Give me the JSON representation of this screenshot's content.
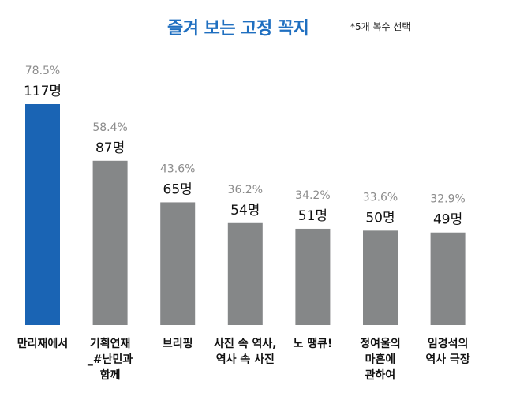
{
  "title": "즐겨 보는 고정 꼭지",
  "note": "*5개 복수 선택",
  "colors": {
    "highlight": "#1a64b4",
    "bar": "#858788",
    "title": "#1f6fc0"
  },
  "chart_data": {
    "type": "bar",
    "title": "즐겨 보는 고정 꼭지",
    "subtitle": "*5개 복수 선택",
    "categories": [
      "만리재에서",
      "기획연재 _#난민과 함께",
      "브리핑",
      "사진 속 역사, 역사 속 사진",
      "노 땡큐!",
      "정여울의 마흔에 관하여",
      "임경석의 역사 극장"
    ],
    "category_lines": [
      [
        "만리재에서"
      ],
      [
        "기획연재",
        "_#난민과",
        "함께"
      ],
      [
        "브리핑"
      ],
      [
        "사진 속 역사,",
        "역사 속 사진"
      ],
      [
        "노 땡큐!"
      ],
      [
        "정여울의",
        "마흔에",
        "관하여"
      ],
      [
        "임경석의",
        "역사 극장"
      ]
    ],
    "values": [
      117,
      87,
      65,
      54,
      51,
      50,
      49
    ],
    "count_labels": [
      "117명",
      "87명",
      "65명",
      "54명",
      "51명",
      "50명",
      "49명"
    ],
    "percent_values": [
      78.5,
      58.4,
      43.6,
      36.2,
      34.2,
      33.6,
      32.9
    ],
    "percent_labels": [
      "78.5%",
      "58.4%",
      "43.6%",
      "36.2%",
      "34.2%",
      "33.6%",
      "32.9%"
    ],
    "highlight_index": 0,
    "ylim": [
      0,
      117
    ],
    "xlabel": "",
    "ylabel": ""
  }
}
